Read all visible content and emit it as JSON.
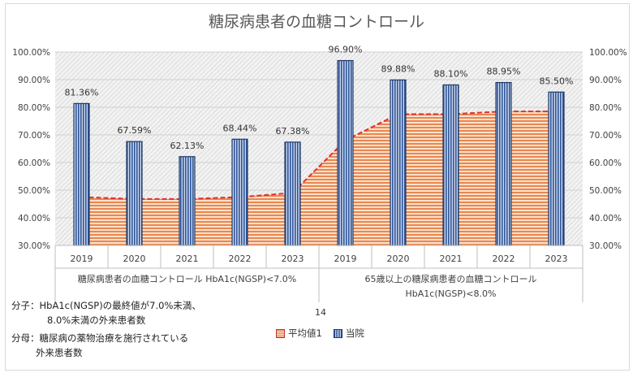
{
  "chart_data": {
    "type": "bar",
    "title": "糖尿病患者の血糖コントロール",
    "categories": [
      "2019",
      "2020",
      "2021",
      "2022",
      "2023",
      "2019",
      "2020",
      "2021",
      "2022",
      "2023"
    ],
    "groups": [
      {
        "label_line1": "糖尿病患者の血糖コントロール HbA1c(NGSP)<7.0%",
        "label_line2": "",
        "count": 5
      },
      {
        "label_line1": "65歳以上の糖尿病患者の血糖コントロール",
        "label_line2": "HbA1c(NGSP)<8.0%",
        "count": 5
      }
    ],
    "series": [
      {
        "name": "当院",
        "type": "bar",
        "values": [
          81.36,
          67.59,
          62.13,
          68.44,
          67.38,
          96.9,
          89.88,
          88.1,
          88.95,
          85.5
        ],
        "labels": [
          "81.36%",
          "67.59%",
          "62.13%",
          "68.44%",
          "67.38%",
          "96.90%",
          "89.88%",
          "88.10%",
          "88.95%",
          "85.50%"
        ],
        "color": "#2f5597"
      },
      {
        "name": "平均値1",
        "type": "area",
        "values": [
          47.5,
          46.8,
          46.8,
          47.5,
          49.0,
          68.0,
          77.5,
          77.5,
          78.5,
          78.5
        ],
        "color": "#e9874f"
      }
    ],
    "y_ticks": [
      "30.00%",
      "40.00%",
      "50.00%",
      "60.00%",
      "70.00%",
      "80.00%",
      "90.00%",
      "100.00%"
    ],
    "ylim": [
      30,
      100
    ],
    "legend_position": "bottom",
    "grid": true
  },
  "notes": {
    "numerator_line1": "分子：HbA1c(NGSP)の最終値が7.0%未満、",
    "numerator_line2": "8.0%未満の外来患者数",
    "denominator_line1": "分母：糖尿病の薬物治療を施行されている",
    "denominator_line2": "外来患者数"
  },
  "page_number": "14"
}
